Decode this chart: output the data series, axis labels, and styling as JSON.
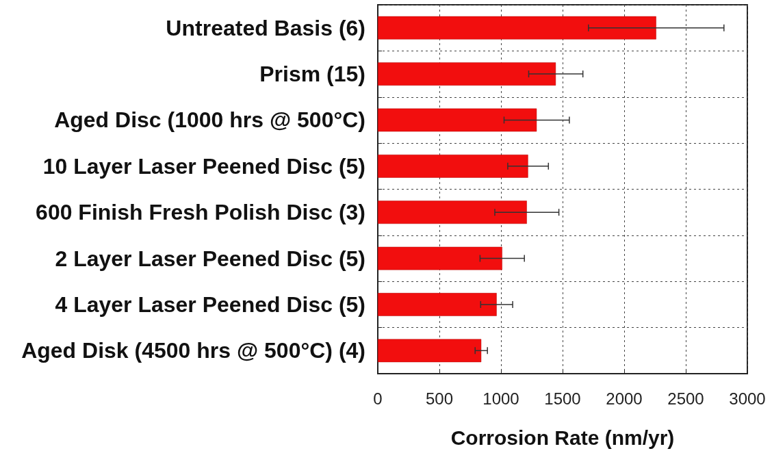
{
  "chart_data": {
    "type": "bar",
    "orientation": "horizontal",
    "categories": [
      "Untreated Basis (6)",
      "Prism (15)",
      "Aged Disc (1000 hrs @ 500°C)",
      "10 Layer Laser Peened Disc (5)",
      "600 Finish Fresh Polish Disc (3)",
      "2 Layer Laser Peened Disc (5)",
      "4 Layer Laser Peened Disc (5)",
      "Aged Disk (4500 hrs @ 500°C) (4)"
    ],
    "values": [
      2260,
      1445,
      1290,
      1220,
      1210,
      1010,
      965,
      840
    ],
    "errors": [
      550,
      220,
      265,
      165,
      260,
      180,
      130,
      50
    ],
    "color": "#f20e0e",
    "xlabel": "Corrosion Rate (nm/yr)",
    "xlim": [
      0,
      3000
    ],
    "xticks": [
      0,
      500,
      1000,
      1500,
      2000,
      2500,
      3000
    ],
    "grid": true
  }
}
